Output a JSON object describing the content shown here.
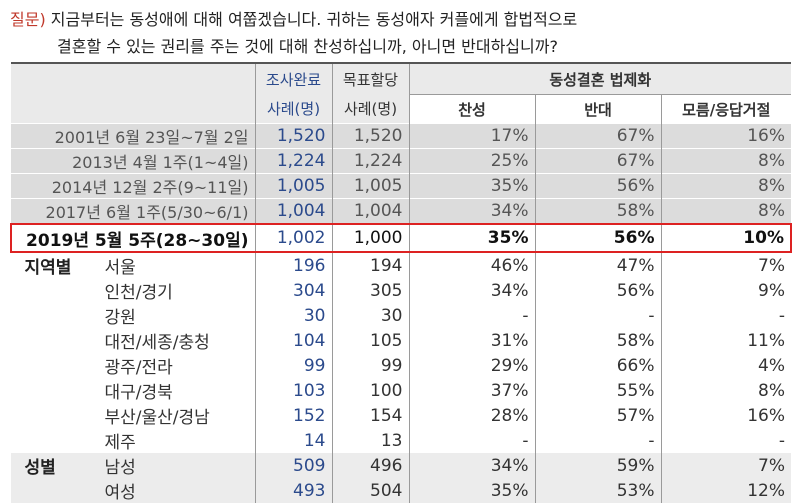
{
  "question": {
    "label": "질문)",
    "line1": "지금부터는 동성애에 대해 여쭙겠습니다. 귀하는 동성애자 커플에게 합법적으로",
    "line2": "결혼할 수 있는 권리를 주는 것에 대해 찬성하십니까, 아니면 반대하십니까?"
  },
  "header": {
    "completed": "조사완료",
    "target": "목표할당",
    "cases": "사례(명)",
    "group": "동성결혼 법제화",
    "cols": [
      "찬성",
      "반대",
      "모름/응답거절"
    ]
  },
  "trend": [
    {
      "label": "2001년 6월 23일~7월 2일",
      "completed": "1,520",
      "target": "1,520",
      "yes": "17%",
      "no": "67%",
      "dk": "16%"
    },
    {
      "label": "2013년 4월 1주(1~4일)",
      "completed": "1,224",
      "target": "1,224",
      "yes": "25%",
      "no": "67%",
      "dk": "8%"
    },
    {
      "label": "2014년 12월 2주(9~11일)",
      "completed": "1,005",
      "target": "1,005",
      "yes": "35%",
      "no": "56%",
      "dk": "8%"
    },
    {
      "label": "2017년 6월 1주(5/30~6/1)",
      "completed": "1,004",
      "target": "1,004",
      "yes": "34%",
      "no": "58%",
      "dk": "8%"
    }
  ],
  "current": {
    "label": "2019년 5월 5주(28~30일)",
    "completed": "1,002",
    "target": "1,000",
    "yes": "35%",
    "no": "56%",
    "dk": "10%"
  },
  "regions": {
    "group": "지역별",
    "rows": [
      {
        "label": "서울",
        "completed": "196",
        "target": "194",
        "yes": "46%",
        "no": "47%",
        "dk": "7%"
      },
      {
        "label": "인천/경기",
        "completed": "304",
        "target": "305",
        "yes": "34%",
        "no": "56%",
        "dk": "9%"
      },
      {
        "label": "강원",
        "completed": "30",
        "target": "30",
        "yes": "-",
        "no": "-",
        "dk": "-"
      },
      {
        "label": "대전/세종/충청",
        "completed": "104",
        "target": "105",
        "yes": "31%",
        "no": "58%",
        "dk": "11%"
      },
      {
        "label": "광주/전라",
        "completed": "99",
        "target": "99",
        "yes": "29%",
        "no": "66%",
        "dk": "4%"
      },
      {
        "label": "대구/경북",
        "completed": "103",
        "target": "100",
        "yes": "37%",
        "no": "55%",
        "dk": "8%"
      },
      {
        "label": "부산/울산/경남",
        "completed": "152",
        "target": "154",
        "yes": "28%",
        "no": "57%",
        "dk": "16%"
      },
      {
        "label": "제주",
        "completed": "14",
        "target": "13",
        "yes": "-",
        "no": "-",
        "dk": "-"
      }
    ]
  },
  "gender": {
    "group": "성별",
    "rows": [
      {
        "label": "남성",
        "completed": "509",
        "target": "496",
        "yes": "34%",
        "no": "59%",
        "dk": "7%"
      },
      {
        "label": "여성",
        "completed": "493",
        "target": "504",
        "yes": "35%",
        "no": "53%",
        "dk": "12%"
      }
    ]
  }
}
